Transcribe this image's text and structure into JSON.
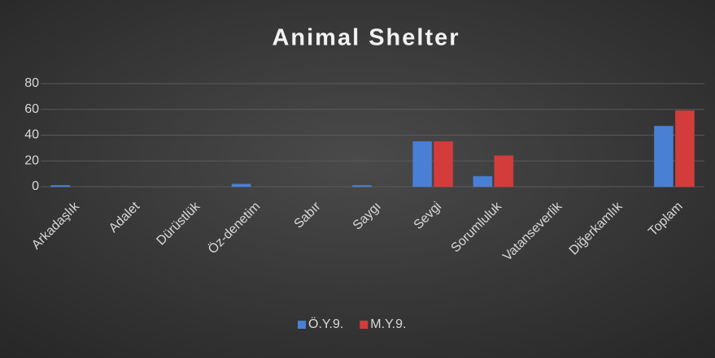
{
  "chart_data": {
    "type": "bar",
    "title": "Animal Shelter",
    "categories": [
      "Arkadaşlık",
      "Adalet",
      "Dürüstlük",
      "Öz-denetim",
      "Sabır",
      "Saygı",
      "Sevgi",
      "Sorumluluk",
      "Vatanseverlik",
      "Diğerkamlık",
      "Toplam"
    ],
    "series": [
      {
        "name": "Ö.Y.9.",
        "color": "#4a80d4",
        "values": [
          1,
          0,
          0,
          2,
          0,
          1,
          35,
          8,
          0,
          0,
          47
        ]
      },
      {
        "name": "M.Y.9.",
        "color": "#d43c3c",
        "values": [
          0,
          0,
          0,
          0,
          0,
          0,
          35,
          24,
          0,
          0,
          59
        ]
      }
    ],
    "ylim": [
      0,
      80
    ],
    "yticks": [
      0,
      20,
      40,
      60,
      80
    ],
    "grid": true,
    "legend": "bottom"
  }
}
